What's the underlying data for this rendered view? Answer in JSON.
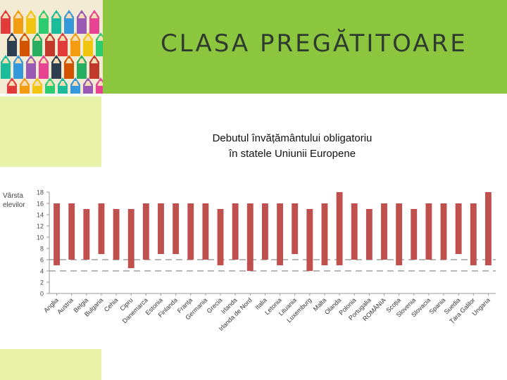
{
  "slide": {
    "title": "CLASA PREGĂTITOARE"
  },
  "colors": {
    "header": "#8cc63f",
    "side": "#e9f2a9",
    "bar": "#c0504d",
    "dash": "#8c8c8c"
  },
  "chart_data": {
    "type": "bar",
    "subtype": "floating-range",
    "title_lines": [
      "Debutul învățământului obligatoriu",
      "în statele Uniunii Europene"
    ],
    "ylabel_lines": [
      "Vârsta",
      "elevilor"
    ],
    "ylim": [
      0,
      18
    ],
    "yticks": [
      0,
      2,
      4,
      6,
      8,
      10,
      12,
      14,
      16,
      18
    ],
    "grid": false,
    "legend": "none",
    "categories": [
      "Anglia",
      "Austria",
      "Belgia",
      "Bulgaria",
      "Cehia",
      "Cipru",
      "Danemarca",
      "Estonia",
      "Finlanda",
      "Franța",
      "Germania",
      "Grecia",
      "Irlanda",
      "Irlanda de Nord",
      "Italia",
      "Letonia",
      "Lituania",
      "Luxemburg",
      "Malta",
      "Olanda",
      "Polonia",
      "Portugalia",
      "ROMÂNIA",
      "Scoția",
      "Slovenia",
      "Slovacia",
      "Spania",
      "Suedia",
      "Țara Galilor",
      "Ungaria"
    ],
    "series": [
      {
        "low": [
          5,
          6,
          6,
          7,
          6,
          4.5,
          6,
          7,
          7,
          6,
          6,
          5,
          6,
          4,
          6,
          5,
          7,
          4,
          5,
          5,
          6,
          6,
          6,
          5,
          6,
          6,
          6,
          7,
          5,
          5
        ],
        "high": [
          16,
          16,
          15,
          16,
          15,
          15,
          16,
          16,
          16,
          16,
          16,
          15,
          16,
          16,
          16,
          16,
          16,
          15,
          16,
          18,
          16,
          15,
          16,
          16,
          15,
          16,
          16,
          16,
          16,
          18
        ]
      }
    ],
    "reference_lines": [
      4,
      6
    ]
  }
}
